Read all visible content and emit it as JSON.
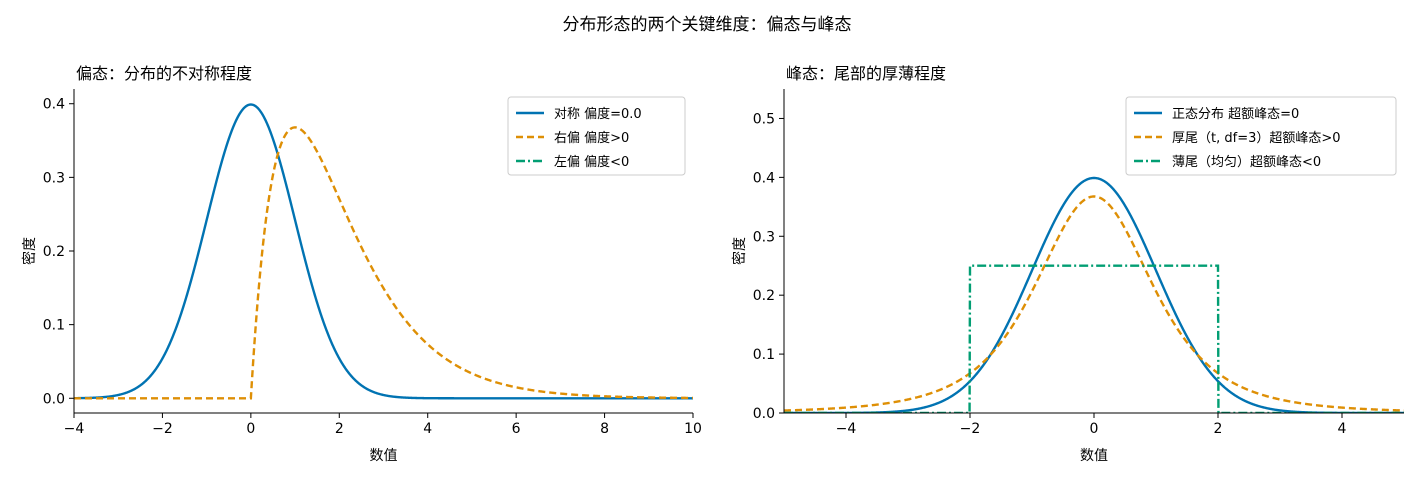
{
  "suptitle": "分布形态的两个关键维度：偏态与峰态",
  "colors": {
    "blue": "#0173b2",
    "orange": "#de8f05",
    "green": "#029e73"
  },
  "chart_data": [
    {
      "type": "line",
      "title": "偏态：分布的不对称程度",
      "xlabel": "数值",
      "ylabel": "密度",
      "xlim": [
        -4,
        10
      ],
      "ylim": [
        -0.02,
        0.42
      ],
      "xticks": [
        "-4",
        "-2",
        "0",
        "2",
        "4",
        "6",
        "8",
        "10"
      ],
      "yticks": [
        "0.0",
        "0.1",
        "0.2",
        "0.3",
        "0.4"
      ],
      "grid": false,
      "legend_position": "top-right",
      "series": [
        {
          "name": "对称  偏度=0.0",
          "style": "solid",
          "color": "#0173b2",
          "distribution": "normal(0,1)",
          "peak": {
            "x": 0,
            "y": 0.399
          }
        },
        {
          "name": "右偏  偏度>0",
          "style": "dashed",
          "color": "#de8f05",
          "distribution": "gamma(shape=2,scale=1)",
          "peak": {
            "x": 1,
            "y": 0.368
          }
        },
        {
          "name": "左偏  偏度<0",
          "style": "dashdot",
          "color": "#029e73",
          "distribution": "none visible",
          "peak": null
        }
      ]
    },
    {
      "type": "line",
      "title": "峰态：尾部的厚薄程度",
      "xlabel": "数值",
      "ylabel": "密度",
      "xlim": [
        -5,
        5
      ],
      "ylim": [
        0,
        0.55
      ],
      "xticks": [
        "-4",
        "-2",
        "0",
        "2",
        "4"
      ],
      "yticks": [
        "0.0",
        "0.1",
        "0.2",
        "0.3",
        "0.4",
        "0.5"
      ],
      "grid": false,
      "legend_position": "top-right",
      "series": [
        {
          "name": "正态分布  超额峰态=0",
          "style": "solid",
          "color": "#0173b2",
          "distribution": "normal(0,1)",
          "peak": {
            "x": 0,
            "y": 0.399
          }
        },
        {
          "name": "厚尾（t, df=3）超额峰态>0",
          "style": "dashed",
          "color": "#de8f05",
          "distribution": "t(df=3)",
          "peak": {
            "x": 0,
            "y": 0.368
          }
        },
        {
          "name": "薄尾（均匀）超额峰态<0",
          "style": "dashdot",
          "color": "#029e73",
          "distribution": "uniform(-2,2)",
          "peak": {
            "x": 0,
            "y": 0.25
          }
        }
      ]
    }
  ]
}
